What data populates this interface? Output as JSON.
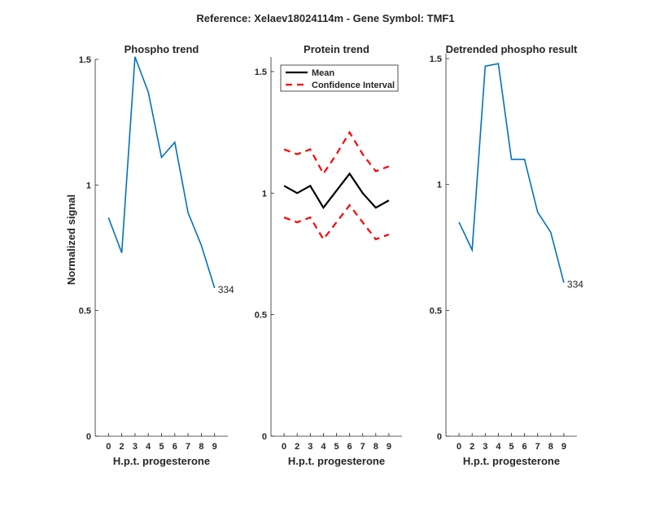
{
  "chart_data": [
    {
      "type": "line",
      "suptitle": "Reference:  Xelaev18024114m - Gene Symbol:  TMF1",
      "title": "Phospho trend",
      "xlabel": "H.p.t. progesterone",
      "ylabel": "Normalized signal",
      "categories": [
        "0",
        "2",
        "3",
        "4",
        "5",
        "6",
        "7",
        "8",
        "9"
      ],
      "ylim": [
        0,
        1.5
      ],
      "yticks": [
        0,
        0.5,
        1,
        1.5
      ],
      "ytick_labels": [
        "0",
        "0.5",
        "1",
        "1.5"
      ],
      "series": [
        {
          "name": "Phospho",
          "color": "#0072BD",
          "values": [
            0.87,
            0.73,
            1.51,
            1.37,
            1.11,
            1.17,
            0.89,
            0.76,
            0.59
          ]
        }
      ],
      "annotation": "334"
    },
    {
      "type": "line",
      "title": "Protein trend",
      "xlabel": "H.p.t. progesterone",
      "categories": [
        "0",
        "2",
        "3",
        "4",
        "5",
        "6",
        "7",
        "8",
        "9"
      ],
      "ylim": [
        0,
        1.56
      ],
      "yticks": [
        0,
        0.5,
        1,
        1.5
      ],
      "ytick_labels": [
        "0",
        "0.5",
        "1",
        "1.5"
      ],
      "legend_position": "top-left",
      "series": [
        {
          "name": "Mean",
          "color": "#000000",
          "dash": false,
          "values": [
            1.03,
            1.0,
            1.03,
            0.94,
            1.01,
            1.08,
            1.0,
            0.94,
            0.97
          ]
        },
        {
          "name": "Confidence Interval",
          "color": "#FF0000",
          "dash": true,
          "values": [
            1.18,
            1.16,
            1.18,
            1.08,
            1.16,
            1.25,
            1.16,
            1.09,
            1.11
          ]
        },
        {
          "name": "",
          "color": "#FF0000",
          "dash": true,
          "values": [
            0.9,
            0.88,
            0.9,
            0.81,
            0.88,
            0.95,
            0.88,
            0.81,
            0.83
          ]
        }
      ],
      "legend": [
        "Mean",
        "Confidence Interval"
      ]
    },
    {
      "type": "line",
      "title": "Detrended phospho result",
      "xlabel": "H.p.t. progesterone",
      "categories": [
        "0",
        "2",
        "3",
        "4",
        "5",
        "6",
        "7",
        "8",
        "9"
      ],
      "ylim": [
        0,
        1.52
      ],
      "yticks": [
        0,
        0.5,
        1,
        1.5
      ],
      "ytick_labels": [
        "0",
        "0.5",
        "1",
        "1.5"
      ],
      "series": [
        {
          "name": "Detrended",
          "color": "#0072BD",
          "values": [
            0.85,
            0.74,
            1.47,
            1.48,
            1.1,
            1.1,
            0.89,
            0.81,
            0.61
          ]
        }
      ],
      "annotation": "334"
    }
  ]
}
